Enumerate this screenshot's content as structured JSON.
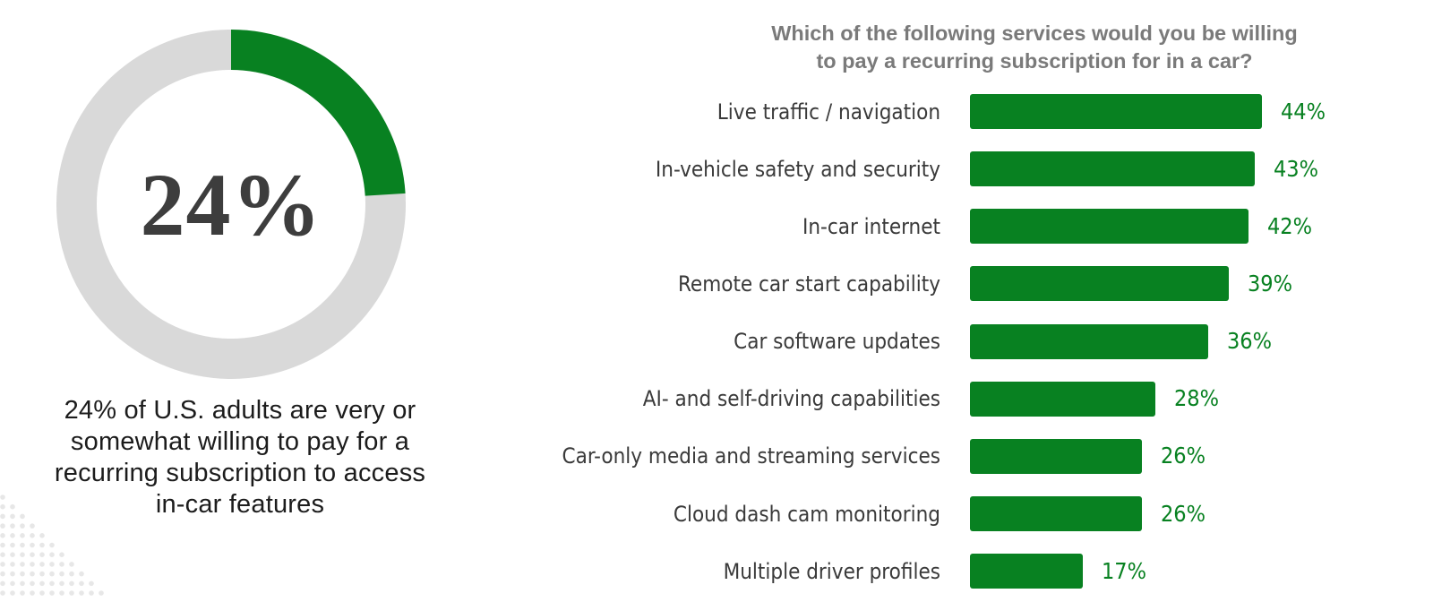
{
  "left_panel": {
    "donut": {
      "percent": 24,
      "center_label": "24%",
      "arc_color": "#088121",
      "track_color": "#d9d9d9"
    },
    "caption": "24% of U.S. adults are very or\nsomewhat willing to pay for a\nrecurring subscription to access\nin-car features"
  },
  "chart_data": {
    "type": "bar",
    "orientation": "horizontal",
    "title": "Which of the following services would you be willing\nto pay a recurring subscription for in a car?",
    "categories": [
      "Live traffic / navigation",
      "In-vehicle safety and security",
      "In-car internet",
      "Remote car start capability",
      "Car software updates",
      "AI- and self-driving capabilities",
      "Car-only media and streaming services",
      "Cloud dash cam monitoring",
      "Multiple driver profiles"
    ],
    "values": [
      44,
      43,
      42,
      39,
      36,
      28,
      26,
      26,
      17
    ],
    "value_labels": [
      "44%",
      "43%",
      "42%",
      "39%",
      "36%",
      "28%",
      "26%",
      "26%",
      "17%"
    ],
    "xlim": [
      0,
      50
    ],
    "grid": false,
    "legend": false,
    "bar_color": "#088121",
    "value_color": "#088121",
    "label_color": "#3a3a3a",
    "title_color": "#7a7a7a"
  }
}
